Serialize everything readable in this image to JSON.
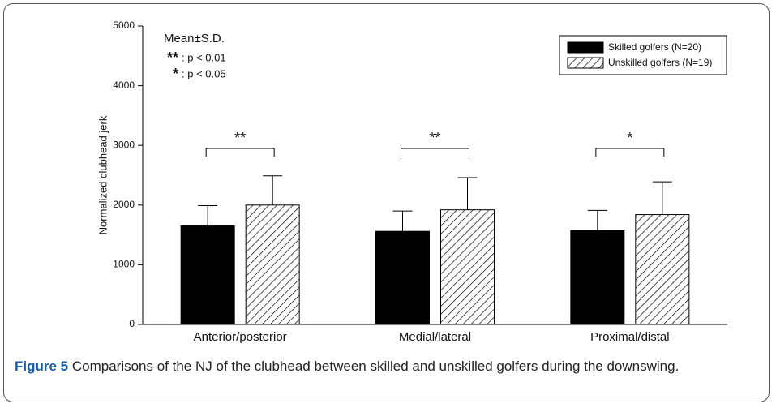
{
  "chart_data": {
    "type": "bar",
    "categories": [
      "Anterior/posterior",
      "Medial/lateral",
      "Proximal/distal"
    ],
    "series": [
      {
        "name": "Skilled golfers (N=20)",
        "color": "#000000",
        "values": [
          1650,
          1560,
          1570
        ],
        "errors": [
          340,
          340,
          340
        ]
      },
      {
        "name": "Unskilled golfers (N=19)",
        "color": "#ffffff",
        "hatch": "diagonal",
        "values": [
          2000,
          1920,
          1840
        ],
        "errors": [
          490,
          540,
          550
        ]
      }
    ],
    "ylabel": "Normalized clubhead jerk",
    "ylim": [
      0,
      5000
    ],
    "yticks": [
      0,
      1000,
      2000,
      3000,
      4000,
      5000
    ],
    "significance": [
      "**",
      "**",
      "*"
    ],
    "annotations": [
      "Mean±S.D.",
      "**",
      ": p < 0.01",
      "*",
      ": p < 0.05"
    ],
    "legend": "upper right"
  },
  "caption": {
    "label": "Figure 5",
    "text": "Comparisons of the NJ of the clubhead between skilled and unskilled golfers during the downswing."
  }
}
